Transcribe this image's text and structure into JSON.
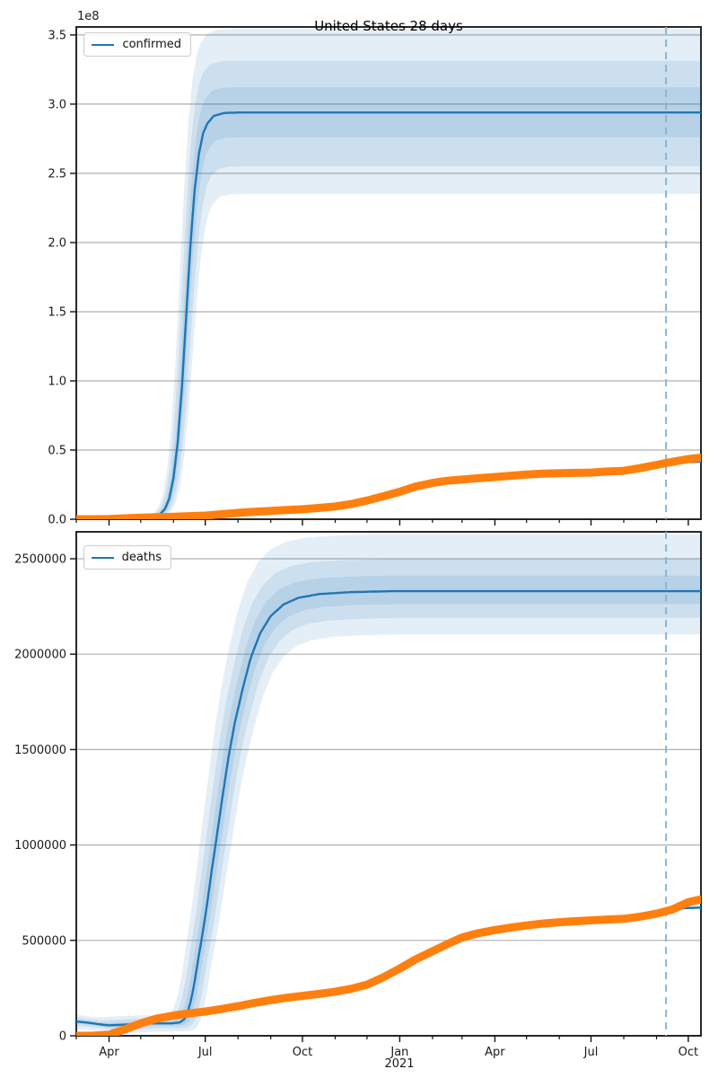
{
  "figure": {
    "title": "United States 28 days",
    "offset_label": "1e8",
    "year_label": "2021",
    "background": "#ffffff"
  },
  "colors": {
    "fit_line": "#1f77b4",
    "actual_line": "#ff7f0e",
    "band_fill": "rgba(31,119,180,0.12)",
    "grid": "#b0b0b0",
    "cutoff_line": "#88b5d8",
    "spine": "#111111",
    "tick_label": "#1a1a1a",
    "legend_border": "#cccccc"
  },
  "chart_data": [
    {
      "name": "confirmed",
      "type": "line",
      "title": "United States 28 days",
      "legend": {
        "label": "confirmed",
        "position": "upper left"
      },
      "x_epoch": "2020-03-01",
      "x_domain_days": [
        0,
        591
      ],
      "x_major_ticks": [
        {
          "day": 31,
          "label": "Apr"
        },
        {
          "day": 122,
          "label": "Jul"
        },
        {
          "day": 214,
          "label": "Oct"
        },
        {
          "day": 306,
          "label": "Jan"
        },
        {
          "day": 396,
          "label": "Apr"
        },
        {
          "day": 487,
          "label": "Jul"
        },
        {
          "day": 579,
          "label": "Oct"
        }
      ],
      "x_minor_tick_days": [
        0,
        61,
        92,
        153,
        184,
        245,
        275,
        337,
        365,
        426,
        457,
        518,
        549
      ],
      "ylim": [
        0,
        355800000
      ],
      "y_offset_factor": "1e8",
      "y_ticks": [
        {
          "value": 0,
          "label": "0.0"
        },
        {
          "value": 50000000,
          "label": "0.5"
        },
        {
          "value": 100000000,
          "label": "1.0"
        },
        {
          "value": 150000000,
          "label": "1.5"
        },
        {
          "value": 200000000,
          "label": "2.0"
        },
        {
          "value": 250000000,
          "label": "2.5"
        },
        {
          "value": 300000000,
          "label": "3.0"
        },
        {
          "value": 350000000,
          "label": "3.5"
        }
      ],
      "cutoff_day": 558,
      "fit_plateau": 294000000,
      "series": [
        {
          "name": "confirmed-fit-median",
          "role": "fit",
          "points": [
            [
              0,
              0
            ],
            [
              60,
              200000
            ],
            [
              70,
              700000
            ],
            [
              78,
              2600000
            ],
            [
              84,
              7600000
            ],
            [
              88,
              15000000
            ],
            [
              92,
              30000000
            ],
            [
              96,
              56000000
            ],
            [
              100,
              96000000
            ],
            [
              104,
              147000000
            ],
            [
              108,
              198000000
            ],
            [
              112,
              238000000
            ],
            [
              116,
              264000000
            ],
            [
              120,
              279000000
            ],
            [
              124,
              286000000
            ],
            [
              130,
              291500000
            ],
            [
              140,
              293600000
            ],
            [
              155,
              294000000
            ],
            [
              591,
              294000000
            ]
          ]
        },
        {
          "name": "confirmed-actual",
          "role": "actual",
          "points": [
            [
              0,
              100
            ],
            [
              15,
              3000
            ],
            [
              31,
              190000
            ],
            [
              46,
              640000
            ],
            [
              61,
              1100000
            ],
            [
              76,
              1400000
            ],
            [
              92,
              1800000
            ],
            [
              107,
              2200000
            ],
            [
              122,
              2600000
            ],
            [
              137,
              3600000
            ],
            [
              153,
              4600000
            ],
            [
              168,
              5400000
            ],
            [
              184,
              6000000
            ],
            [
              199,
              6700000
            ],
            [
              214,
              7200000
            ],
            [
              230,
              8200000
            ],
            [
              245,
              9200000
            ],
            [
              260,
              11000000
            ],
            [
              275,
              13500000
            ],
            [
              290,
              16500000
            ],
            [
              306,
              19900000
            ],
            [
              321,
              23600000
            ],
            [
              337,
              26200000
            ],
            [
              351,
              27800000
            ],
            [
              365,
              28700000
            ],
            [
              380,
              29600000
            ],
            [
              396,
              30500000
            ],
            [
              411,
              31400000
            ],
            [
              426,
              32300000
            ],
            [
              441,
              32900000
            ],
            [
              457,
              33300000
            ],
            [
              472,
              33500000
            ],
            [
              487,
              33700000
            ],
            [
              502,
              34500000
            ],
            [
              518,
              35000000
            ],
            [
              533,
              36900000
            ],
            [
              549,
              39300000
            ],
            [
              564,
              41500000
            ],
            [
              579,
              43500000
            ],
            [
              591,
              44500000
            ]
          ]
        },
        {
          "name": "confirmed-recent-fit",
          "role": "recent",
          "points": [
            [
              572,
              41300000
            ],
            [
              591,
              41600000
            ]
          ]
        }
      ],
      "bands": [
        {
          "mult_upper": 1.205,
          "mult_lower": 0.8,
          "shift_days": 6,
          "min_half": 0
        },
        {
          "mult_upper": 1.127,
          "mult_lower": 0.868,
          "shift_days": 4,
          "min_half": 0
        },
        {
          "mult_upper": 1.062,
          "mult_lower": 0.939,
          "shift_days": 2,
          "min_half": 0
        }
      ]
    },
    {
      "name": "deaths",
      "type": "line",
      "title": "",
      "legend": {
        "label": "deaths",
        "position": "upper left"
      },
      "x_epoch": "2020-03-01",
      "x_domain_days": [
        0,
        591
      ],
      "x_major_ticks": [
        {
          "day": 31,
          "label": "Apr"
        },
        {
          "day": 122,
          "label": "Jul"
        },
        {
          "day": 214,
          "label": "Oct"
        },
        {
          "day": 306,
          "label": "Jan",
          "year_label": "2021"
        },
        {
          "day": 396,
          "label": "Apr"
        },
        {
          "day": 487,
          "label": "Jul"
        },
        {
          "day": 579,
          "label": "Oct"
        }
      ],
      "x_minor_tick_days": [
        0,
        61,
        92,
        153,
        184,
        245,
        275,
        337,
        365,
        426,
        457,
        518,
        549
      ],
      "ylim": [
        0,
        2641000
      ],
      "y_ticks": [
        {
          "value": 0,
          "label": "0"
        },
        {
          "value": 500000,
          "label": "500000"
        },
        {
          "value": 1000000,
          "label": "1000000"
        },
        {
          "value": 1500000,
          "label": "1500000"
        },
        {
          "value": 2000000,
          "label": "2000000"
        },
        {
          "value": 2500000,
          "label": "2500000"
        }
      ],
      "cutoff_day": 558,
      "fit_plateau": 2330000,
      "series": [
        {
          "name": "deaths-fit-median",
          "role": "fit",
          "points": [
            [
              0,
              75000
            ],
            [
              12,
              68000
            ],
            [
              25,
              58000
            ],
            [
              31,
              55000
            ],
            [
              45,
              58000
            ],
            [
              60,
              63000
            ],
            [
              75,
              65000
            ],
            [
              90,
              65000
            ],
            [
              98,
              70000
            ],
            [
              103,
              90000
            ],
            [
              107,
              150000
            ],
            [
              111,
              250000
            ],
            [
              115,
              390000
            ],
            [
              119,
              520000
            ],
            [
              123,
              660000
            ],
            [
              128,
              860000
            ],
            [
              133,
              1050000
            ],
            [
              138,
              1240000
            ],
            [
              144,
              1460000
            ],
            [
              150,
              1640000
            ],
            [
              157,
              1810000
            ],
            [
              165,
              1980000
            ],
            [
              174,
              2110000
            ],
            [
              184,
              2200000
            ],
            [
              196,
              2260000
            ],
            [
              210,
              2295000
            ],
            [
              230,
              2315000
            ],
            [
              260,
              2325000
            ],
            [
              300,
              2330000
            ],
            [
              591,
              2330000
            ]
          ]
        },
        {
          "name": "deaths-actual",
          "role": "actual",
          "points": [
            [
              0,
              30
            ],
            [
              15,
              500
            ],
            [
              31,
              5000
            ],
            [
              46,
              34000
            ],
            [
              61,
              65000
            ],
            [
              76,
              90000
            ],
            [
              92,
              106000
            ],
            [
              107,
              117000
            ],
            [
              122,
              127000
            ],
            [
              137,
              140000
            ],
            [
              153,
              155000
            ],
            [
              168,
              172000
            ],
            [
              184,
              187000
            ],
            [
              199,
              199000
            ],
            [
              214,
              209000
            ],
            [
              230,
              220000
            ],
            [
              245,
              231000
            ],
            [
              260,
              246000
            ],
            [
              275,
              268000
            ],
            [
              290,
              305000
            ],
            [
              306,
              352000
            ],
            [
              321,
              400000
            ],
            [
              337,
              443000
            ],
            [
              351,
              480000
            ],
            [
              365,
              515000
            ],
            [
              380,
              537000
            ],
            [
              396,
              554000
            ],
            [
              411,
              567000
            ],
            [
              426,
              578000
            ],
            [
              441,
              588000
            ],
            [
              457,
              595000
            ],
            [
              472,
              600000
            ],
            [
              487,
              605000
            ],
            [
              502,
              609000
            ],
            [
              518,
              613000
            ],
            [
              533,
              624000
            ],
            [
              549,
              640000
            ],
            [
              564,
              662000
            ],
            [
              579,
              700000
            ],
            [
              591,
              715000
            ]
          ]
        },
        {
          "name": "deaths-recent-fit",
          "role": "recent",
          "points": [
            [
              566,
              668000
            ],
            [
              591,
              672000
            ]
          ]
        }
      ],
      "bands": [
        {
          "mult_upper": 1.128,
          "mult_lower": 0.903,
          "shift_days": 12,
          "min_half": 42000
        },
        {
          "mult_upper": 1.072,
          "mult_lower": 0.94,
          "shift_days": 8,
          "min_half": 25000
        },
        {
          "mult_upper": 1.035,
          "mult_lower": 0.971,
          "shift_days": 4,
          "min_half": 12000
        }
      ]
    }
  ]
}
